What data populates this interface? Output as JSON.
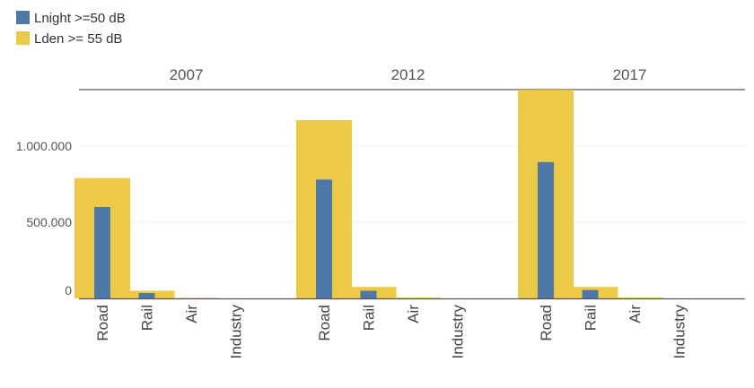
{
  "chart_data": {
    "type": "bar",
    "layout": "small-multiples",
    "panels": [
      "2007",
      "2012",
      "2017"
    ],
    "categories": [
      "Road",
      "Rail",
      "Air",
      "Industry"
    ],
    "series": [
      {
        "name": "Lnight >=50 dB",
        "color": "#4e79a7",
        "values": {
          "2007": [
            600000,
            35000,
            0,
            0
          ],
          "2012": [
            780000,
            50000,
            0,
            0
          ],
          "2017": [
            895000,
            55000,
            0,
            0
          ]
        }
      },
      {
        "name": "Lden >= 55 dB",
        "color": "#edc948",
        "values": {
          "2007": [
            790000,
            50000,
            3000,
            0
          ],
          "2012": [
            1170000,
            75000,
            5000,
            0
          ],
          "2017": [
            1370000,
            75000,
            5000,
            0
          ]
        }
      }
    ],
    "yticks": [
      {
        "value": 0,
        "label": "0"
      },
      {
        "value": 500000,
        "label": "500.000"
      },
      {
        "value": 1000000,
        "label": "1.000.000"
      }
    ],
    "ylim": [
      0,
      1400000
    ],
    "legend_position": "top-left",
    "grid": true
  }
}
